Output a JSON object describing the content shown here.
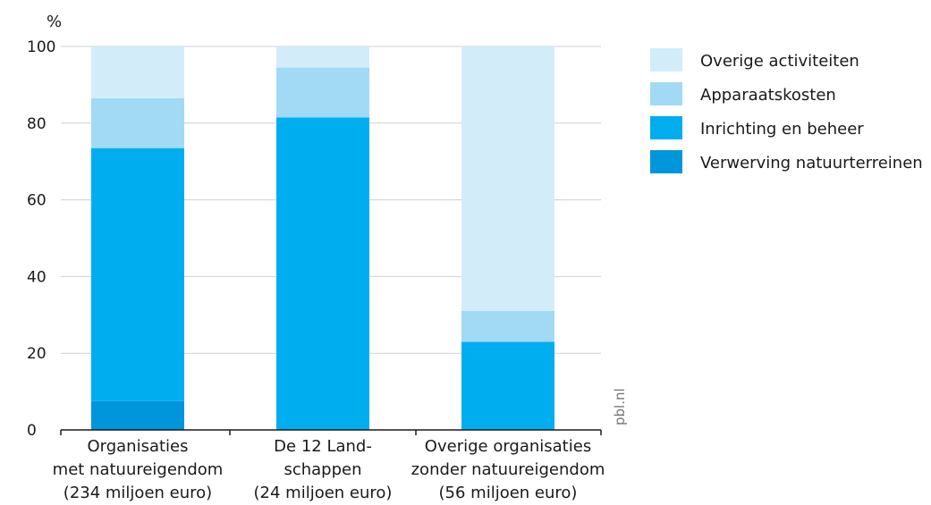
{
  "chart_data": {
    "type": "bar",
    "stacked": true,
    "ylabel": "%",
    "ylim": [
      0,
      100
    ],
    "yticks": [
      0,
      20,
      40,
      60,
      80,
      100
    ],
    "grid": true,
    "legend_position": "right",
    "categories": [
      [
        "Organisaties",
        "met natuureigendom",
        "(234 miljoen euro)"
      ],
      [
        "De 12 Land-",
        "schappen",
        "(24 miljoen euro)"
      ],
      [
        "Overige organisaties",
        "zonder natuureigendom",
        "(56 miljoen euro)"
      ]
    ],
    "series": [
      {
        "name": "Verwerving natuurterreinen",
        "color": "#0096db",
        "values": [
          7.5,
          0,
          0
        ]
      },
      {
        "name": "Inrichting en beheer",
        "color": "#00aeef",
        "values": [
          66,
          81.5,
          23
        ]
      },
      {
        "name": "Apparaatskosten",
        "color": "#a2daf6",
        "values": [
          13,
          13,
          8
        ]
      },
      {
        "name": "Overige activiteiten",
        "color": "#d2ecfa",
        "values": [
          13.5,
          5.5,
          69
        ]
      }
    ],
    "source": "pbl.nl"
  }
}
